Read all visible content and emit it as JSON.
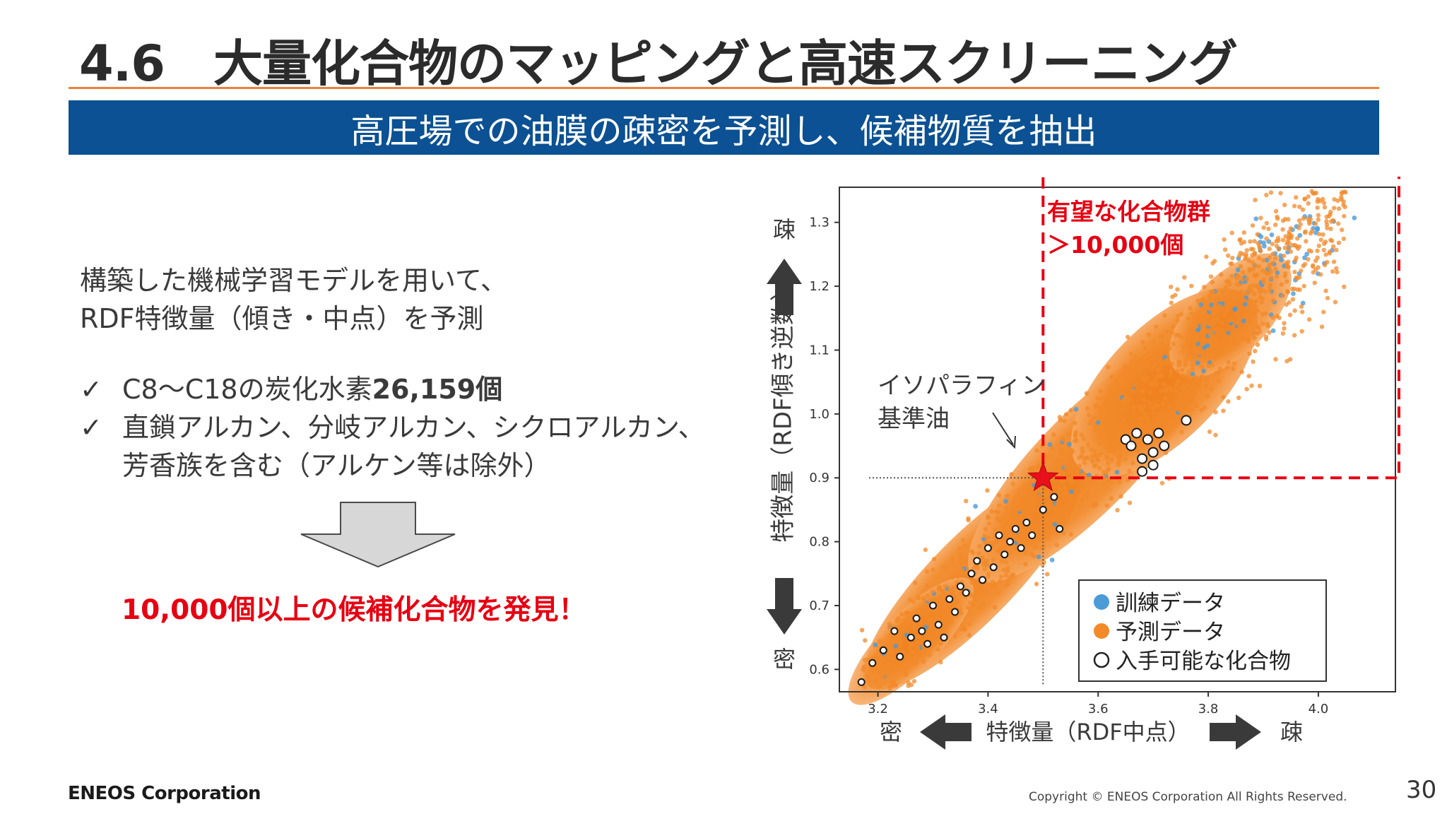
{
  "slide": {
    "title": "4.6　大量化合物のマッピングと高速スクリーニング",
    "banner": "高圧場での油膜の疎密を予測し、候補物質を抽出",
    "intro": [
      "構築した機械学習モデルを用いて、",
      "RDF特徴量（傾き・中点）を予測"
    ],
    "checklist": [
      {
        "mark": "✓",
        "parts": [
          "C8〜C18の炭化水素",
          "26,159個"
        ]
      },
      {
        "mark": "✓",
        "parts": [
          "直鎖アルカン、分岐アルカン、シクロアルカン、",
          "芳香族を含む（アルケン等は除外）"
        ]
      }
    ],
    "result": "10,000個以上の候補化合物を発見！",
    "footer": {
      "logo": "ENEOS Corporation",
      "copyright": "Copyright © ENEOS Corporation  All Rights Reserved.",
      "page": "30"
    }
  },
  "colors": {
    "accent_orange": "#f28a2a",
    "train_blue": "#4b9bd8",
    "highlight_red": "#e60012",
    "banner_blue": "#0b5193"
  },
  "chart_data": {
    "type": "scatter",
    "xlabel": "特徴量（RDF中点）",
    "ylabel": "特徴量（RDF傾き逆数）",
    "x_ticks": [
      "3.2",
      "3.4",
      "3.6",
      "3.8",
      "4.0"
    ],
    "y_ticks": [
      "0.6",
      "0.7",
      "0.8",
      "0.9",
      "1.0",
      "1.1",
      "1.2",
      "1.3"
    ],
    "xlim": [
      3.13,
      4.14
    ],
    "ylim": [
      0.565,
      1.355
    ],
    "x_axis_ends": {
      "left": "密",
      "right": "疎"
    },
    "y_axis_ends": {
      "top": "疎",
      "bottom": "密"
    },
    "legend": {
      "position": "lower-right",
      "items": [
        {
          "label": "訓練データ",
          "color": "#4b9bd8",
          "marker": "filled"
        },
        {
          "label": "予測データ",
          "color": "#f28a2a",
          "marker": "filled"
        },
        {
          "label": "入手可能な化合物",
          "color": "#ffffff",
          "marker": "hollow"
        }
      ]
    },
    "highlight_box": {
      "label_line1": "有望な化合物群",
      "label_line2": "＞10,000個",
      "x_min": 3.5,
      "y_min": 0.9
    },
    "reference": {
      "label_line1": "イソパラフィン",
      "label_line2": "基準油",
      "x": 3.5,
      "y": 0.9
    },
    "available_compounds": [
      {
        "x": 3.17,
        "y": 0.58
      },
      {
        "x": 3.19,
        "y": 0.61
      },
      {
        "x": 3.21,
        "y": 0.63
      },
      {
        "x": 3.23,
        "y": 0.66
      },
      {
        "x": 3.24,
        "y": 0.62
      },
      {
        "x": 3.26,
        "y": 0.65
      },
      {
        "x": 3.27,
        "y": 0.68
      },
      {
        "x": 3.28,
        "y": 0.66
      },
      {
        "x": 3.29,
        "y": 0.64
      },
      {
        "x": 3.3,
        "y": 0.7
      },
      {
        "x": 3.31,
        "y": 0.67
      },
      {
        "x": 3.32,
        "y": 0.65
      },
      {
        "x": 3.33,
        "y": 0.71
      },
      {
        "x": 3.34,
        "y": 0.69
      },
      {
        "x": 3.35,
        "y": 0.73
      },
      {
        "x": 3.36,
        "y": 0.72
      },
      {
        "x": 3.37,
        "y": 0.75
      },
      {
        "x": 3.38,
        "y": 0.77
      },
      {
        "x": 3.39,
        "y": 0.74
      },
      {
        "x": 3.4,
        "y": 0.79
      },
      {
        "x": 3.41,
        "y": 0.76
      },
      {
        "x": 3.42,
        "y": 0.81
      },
      {
        "x": 3.43,
        "y": 0.78
      },
      {
        "x": 3.44,
        "y": 0.8
      },
      {
        "x": 3.45,
        "y": 0.82
      },
      {
        "x": 3.46,
        "y": 0.79
      },
      {
        "x": 3.47,
        "y": 0.83
      },
      {
        "x": 3.48,
        "y": 0.81
      },
      {
        "x": 3.5,
        "y": 0.85
      },
      {
        "x": 3.52,
        "y": 0.87
      },
      {
        "x": 3.53,
        "y": 0.82
      },
      {
        "x": 3.65,
        "y": 0.96
      },
      {
        "x": 3.66,
        "y": 0.95
      },
      {
        "x": 3.67,
        "y": 0.97
      },
      {
        "x": 3.68,
        "y": 0.93
      },
      {
        "x": 3.69,
        "y": 0.96
      },
      {
        "x": 3.7,
        "y": 0.94
      },
      {
        "x": 3.71,
        "y": 0.97
      },
      {
        "x": 3.72,
        "y": 0.95
      },
      {
        "x": 3.68,
        "y": 0.91
      },
      {
        "x": 3.7,
        "y": 0.92
      },
      {
        "x": 3.76,
        "y": 0.99
      }
    ]
  }
}
